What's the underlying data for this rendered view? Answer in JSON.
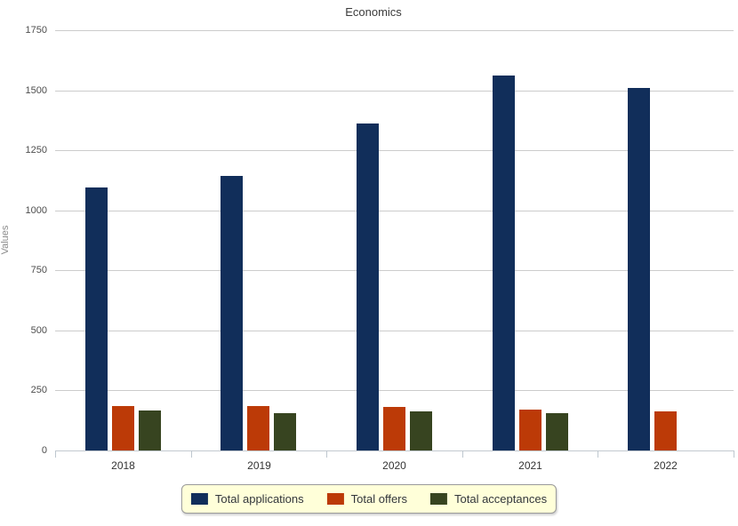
{
  "chart_data": {
    "type": "bar",
    "title": "Economics",
    "xlabel": "",
    "ylabel": "Values",
    "categories": [
      "2018",
      "2019",
      "2020",
      "2021",
      "2022"
    ],
    "series": [
      {
        "name": "Total applications",
        "color": "#112e5a",
        "values": [
          1095,
          1145,
          1360,
          1560,
          1510
        ]
      },
      {
        "name": "Total offers",
        "color": "#bc3a07",
        "values": [
          184,
          185,
          183,
          172,
          162
        ]
      },
      {
        "name": "Total acceptances",
        "color": "#374420",
        "values": [
          165,
          157,
          162,
          154,
          0
        ]
      }
    ],
    "ylim": [
      0,
      1750
    ],
    "yticks": [
      0,
      250,
      500,
      750,
      1000,
      1250,
      1500,
      1750
    ],
    "grid": true,
    "legend_position": "bottom"
  },
  "colors": {
    "legend_background": "#ffffd9",
    "gridline": "#cccccc"
  }
}
